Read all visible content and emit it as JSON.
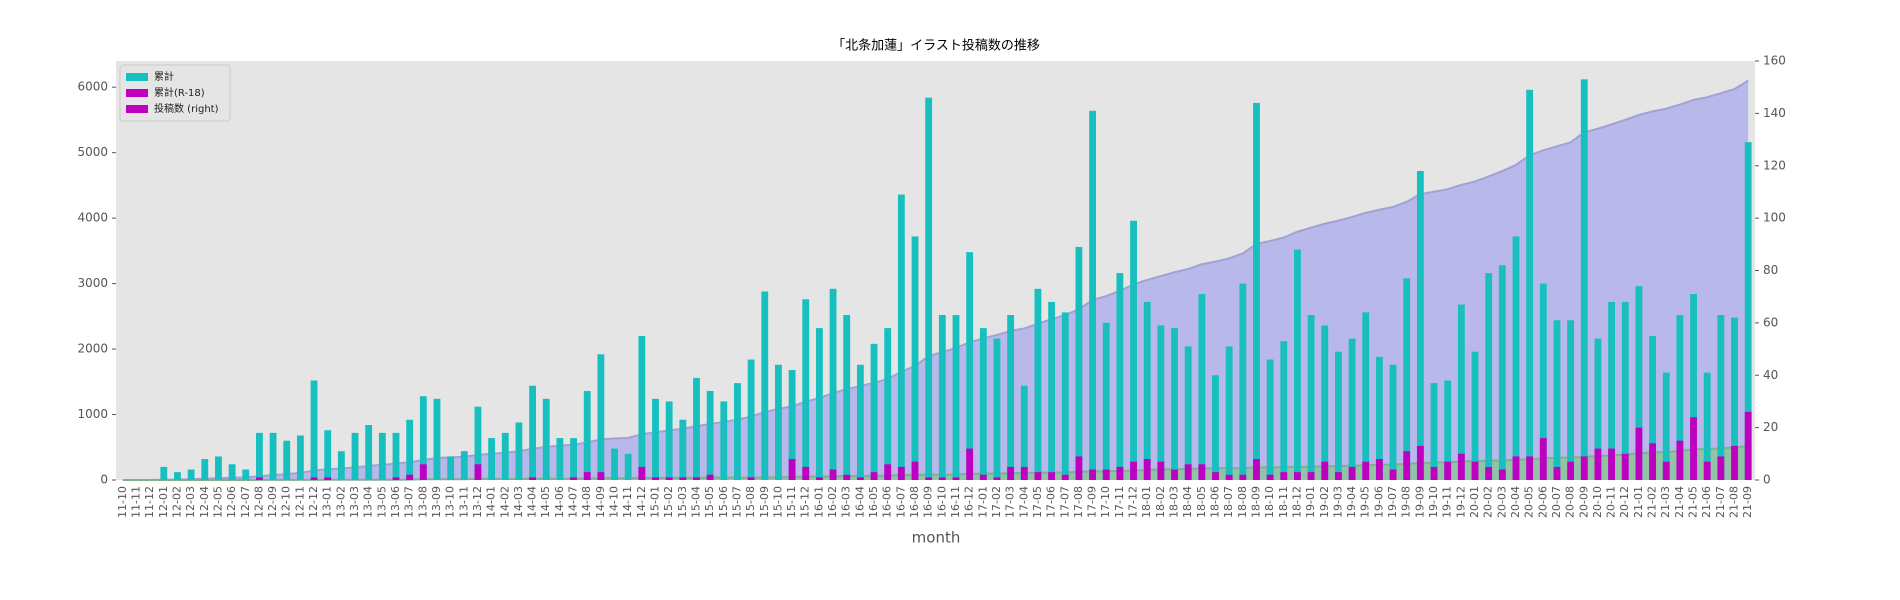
{
  "chart_data": {
    "type": "bar_area",
    "title": "「北条加蓮」イラスト投稿数の推移",
    "xlabel": "month",
    "categories": [
      "11-10",
      "11-11",
      "11-12",
      "12-01",
      "12-02",
      "12-03",
      "12-04",
      "12-05",
      "12-06",
      "12-07",
      "12-08",
      "12-09",
      "12-10",
      "12-11",
      "12-12",
      "13-01",
      "13-02",
      "13-03",
      "13-04",
      "13-05",
      "13-06",
      "13-07",
      "13-08",
      "13-09",
      "13-10",
      "13-11",
      "13-12",
      "14-01",
      "14-02",
      "14-03",
      "14-04",
      "14-05",
      "14-06",
      "14-07",
      "14-08",
      "14-09",
      "14-10",
      "14-11",
      "14-12",
      "15-01",
      "15-02",
      "15-03",
      "15-04",
      "15-05",
      "15-06",
      "15-07",
      "15-08",
      "15-09",
      "15-10",
      "15-11",
      "15-12",
      "16-01",
      "16-02",
      "16-03",
      "16-04",
      "16-05",
      "16-06",
      "16-07",
      "16-08",
      "16-09",
      "16-10",
      "16-11",
      "16-12",
      "17-01",
      "17-02",
      "17-03",
      "17-04",
      "17-05",
      "17-06",
      "17-07",
      "17-08",
      "17-09",
      "17-10",
      "17-11",
      "17-12",
      "18-01",
      "18-02",
      "18-03",
      "18-04",
      "18-05",
      "18-06",
      "18-07",
      "18-08",
      "18-09",
      "18-10",
      "18-11",
      "18-12",
      "19-01",
      "19-02",
      "19-03",
      "19-04",
      "19-05",
      "19-06",
      "19-07",
      "19-08",
      "19-09",
      "19-10",
      "19-11",
      "19-12",
      "20-01",
      "20-02",
      "20-03",
      "20-04",
      "20-05",
      "20-06",
      "20-07",
      "20-08",
      "20-09",
      "20-10",
      "20-11",
      "20-12",
      "21-01",
      "21-02",
      "21-03",
      "21-04",
      "21-05",
      "21-06",
      "21-07",
      "21-08",
      "21-09"
    ],
    "series": [
      {
        "name": "累計",
        "color": "#17bfbf",
        "fill": "#b3b3ea",
        "kind": "area",
        "axis": "y",
        "values": [
          0,
          0,
          0,
          5,
          8,
          12,
          20,
          29,
          35,
          39,
          57,
          75,
          90,
          107,
          145,
          164,
          175,
          193,
          214,
          232,
          250,
          273,
          305,
          336,
          345,
          356,
          384,
          400,
          418,
          440,
          476,
          507,
          523,
          539,
          573,
          621,
          633,
          643,
          698,
          729,
          759,
          782,
          821,
          855,
          885,
          922,
          968,
          1040,
          1084,
          1126,
          1195,
          1253,
          1326,
          1389,
          1433,
          1485,
          1543,
          1652,
          1745,
          1891,
          1954,
          2017,
          2104,
          2162,
          2216,
          2279,
          2315,
          2388,
          2456,
          2520,
          2609,
          2750,
          2810,
          2889,
          2988,
          3056,
          3115,
          3173,
          3224,
          3295,
          3335,
          3386,
          3461,
          3605,
          3651,
          3704,
          3792,
          3855,
          3914,
          3963,
          4017,
          4081,
          4128,
          4172,
          4249,
          4367,
          4404,
          4442,
          4509,
          4558,
          4637,
          4719,
          4812,
          4961,
          5036,
          5097,
          5158,
          5311,
          5365,
          5433,
          5501,
          5575,
          5630,
          5671,
          5734,
          5805,
          5846,
          5909,
          5971,
          6100
        ]
      },
      {
        "name": "累計(R-18)",
        "color": "#bf00bf",
        "fill": "#8fc4a0",
        "kind": "area",
        "axis": "y",
        "values": [
          0,
          0,
          0,
          0,
          0,
          0,
          0,
          0,
          0,
          0,
          1,
          1,
          1,
          1,
          2,
          3,
          3,
          3,
          3,
          3,
          4,
          6,
          12,
          12,
          12,
          12,
          18,
          18,
          18,
          18,
          19,
          19,
          19,
          20,
          23,
          26,
          26,
          26,
          31,
          32,
          33,
          34,
          35,
          37,
          37,
          37,
          38,
          38,
          38,
          46,
          51,
          52,
          56,
          58,
          59,
          62,
          68,
          73,
          80,
          81,
          82,
          83,
          95,
          97,
          98,
          103,
          108,
          111,
          114,
          116,
          125,
          129,
          133,
          138,
          145,
          153,
          160,
          164,
          170,
          176,
          179,
          181,
          183,
          191,
          193,
          196,
          199,
          202,
          209,
          212,
          217,
          224,
          232,
          236,
          247,
          260,
          265,
          272,
          282,
          289,
          294,
          298,
          307,
          316,
          332,
          337,
          344,
          353,
          365,
          377,
          387,
          407,
          421,
          428,
          443,
          467,
          474,
          483,
          496,
          522
        ]
      },
      {
        "name": "投稿数 (right)",
        "color": "#bf00bf",
        "fill": "#17bfbf",
        "kind": "bar",
        "axis": "y2",
        "values": [
          0,
          0,
          0,
          5,
          3,
          4,
          8,
          9,
          6,
          4,
          18,
          18,
          15,
          17,
          38,
          19,
          11,
          18,
          21,
          18,
          18,
          23,
          32,
          31,
          9,
          11,
          28,
          16,
          18,
          22,
          36,
          31,
          16,
          16,
          34,
          48,
          12,
          10,
          55,
          31,
          30,
          23,
          39,
          34,
          30,
          37,
          46,
          72,
          44,
          42,
          69,
          58,
          73,
          63,
          44,
          52,
          58,
          109,
          93,
          146,
          63,
          63,
          87,
          58,
          54,
          63,
          36,
          73,
          68,
          64,
          89,
          141,
          60,
          79,
          99,
          68,
          59,
          58,
          51,
          71,
          40,
          51,
          75,
          144,
          46,
          53,
          88,
          63,
          59,
          49,
          54,
          64,
          47,
          44,
          77,
          118,
          37,
          38,
          67,
          49,
          79,
          82,
          93,
          149,
          75,
          61,
          61,
          153,
          54,
          68,
          68,
          74,
          55,
          41,
          63,
          71,
          41,
          63,
          62,
          129
        ]
      },
      {
        "fill": "#c000c0",
        "kind": "bar",
        "axis": "y2",
        "values": [
          0,
          0,
          0,
          0,
          0,
          0,
          0,
          0,
          0,
          0,
          1,
          0,
          0,
          0,
          1,
          1,
          0,
          0,
          0,
          0,
          1,
          2,
          6,
          0,
          0,
          0,
          6,
          0,
          0,
          0,
          1,
          0,
          0,
          1,
          3,
          3,
          0,
          0,
          5,
          1,
          1,
          1,
          1,
          2,
          0,
          0,
          1,
          0,
          0,
          8,
          5,
          1,
          4,
          2,
          1,
          3,
          6,
          5,
          7,
          1,
          1,
          1,
          12,
          2,
          1,
          5,
          5,
          3,
          3,
          2,
          9,
          4,
          4,
          5,
          7,
          8,
          7,
          4,
          6,
          6,
          3,
          2,
          2,
          8,
          2,
          3,
          3,
          3,
          7,
          3,
          5,
          7,
          8,
          4,
          11,
          13,
          5,
          7,
          10,
          7,
          5,
          4,
          9,
          9,
          16,
          5,
          7,
          9,
          12,
          12,
          10,
          20,
          14,
          7,
          15,
          24,
          7,
          9,
          13,
          26
        ]
      }
    ],
    "ylim": [
      0,
      6400
    ],
    "yticks": [
      0,
      1000,
      2000,
      3000,
      4000,
      5000,
      6000
    ],
    "y2lim": [
      0,
      160
    ],
    "y2ticks": [
      0,
      20,
      40,
      60,
      80,
      100,
      120,
      140,
      160
    ],
    "legend": "upper left"
  }
}
